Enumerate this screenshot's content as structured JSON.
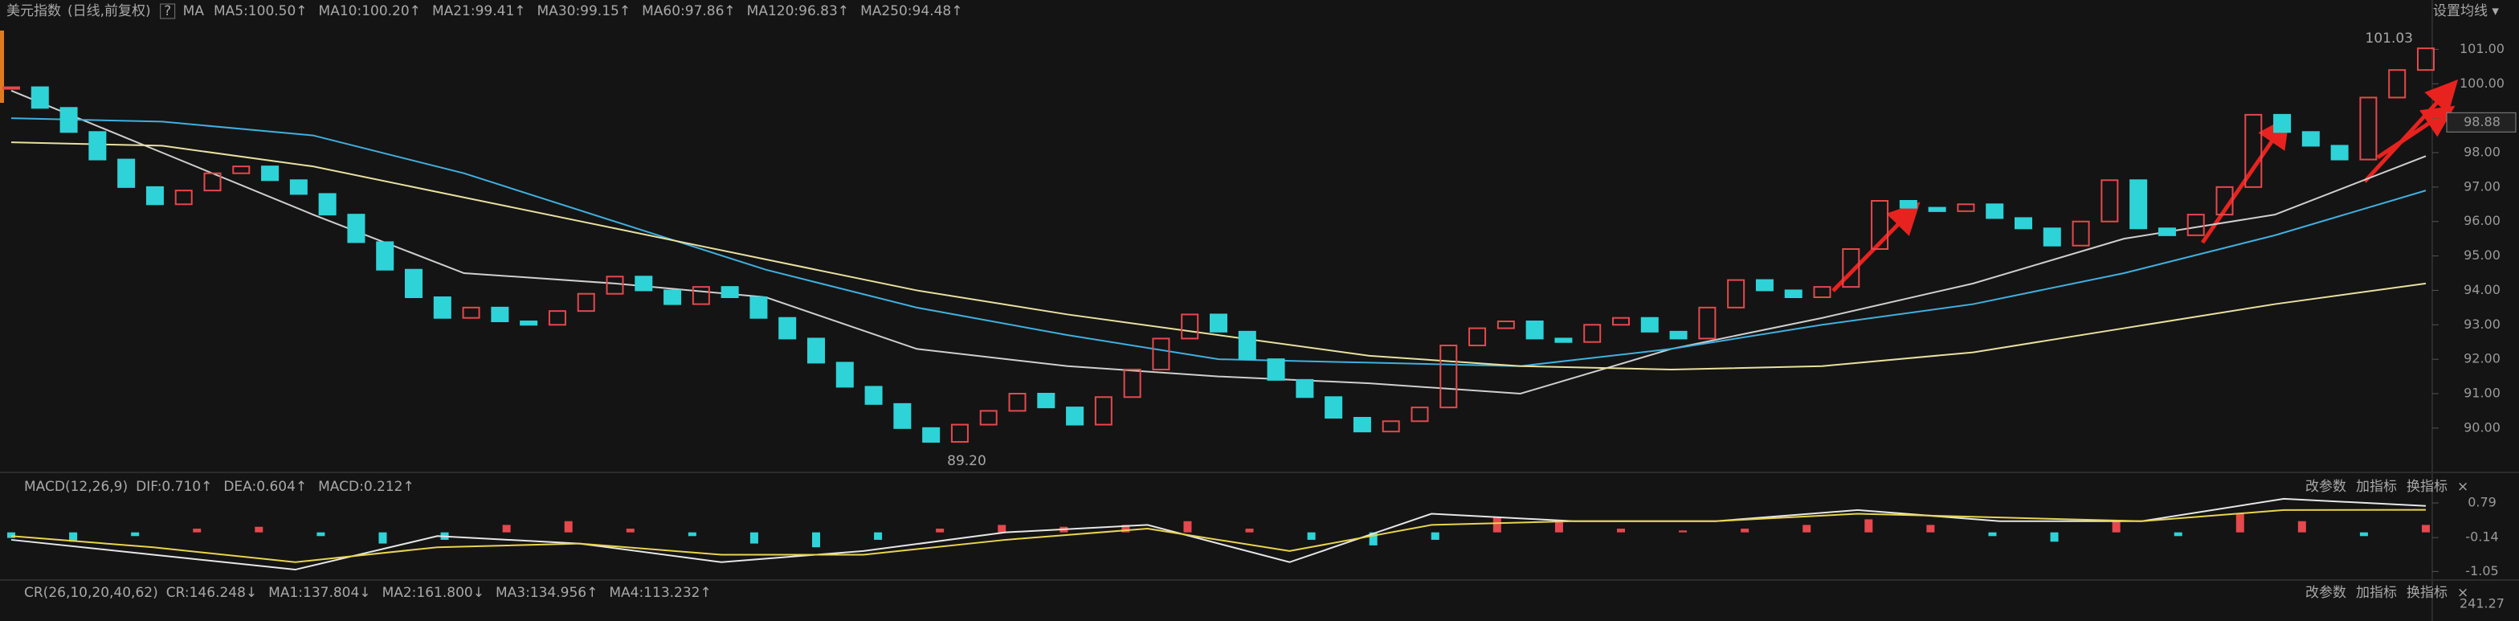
{
  "header": {
    "title": "美元指数",
    "subtitle": "(日线,前复权)",
    "help": "?",
    "ma_label": "MA",
    "settings": "设置均线 ▾"
  },
  "panel_tools": [
    "改参数",
    "加指标",
    "换指标",
    "×"
  ],
  "chart_data": [
    {
      "type": "candlestick",
      "legend": [
        {
          "label": "MA5:100.50↑",
          "color": "#e6e6e6"
        },
        {
          "label": "MA10:100.20↑",
          "color": "#e8d44d"
        },
        {
          "label": "MA21:99.41↑",
          "color": "#d63ad6"
        },
        {
          "label": "MA30:99.15↑",
          "color": "#4cc04c"
        },
        {
          "label": "MA60:97.86↑",
          "color": "#cfcfcf"
        },
        {
          "label": "MA120:96.83↑",
          "color": "#3fb0e0"
        },
        {
          "label": "MA250:94.48↑",
          "color": "#e8e0a0"
        }
      ],
      "closes": [
        99.9,
        99.3,
        98.6,
        97.8,
        97.0,
        96.5,
        96.9,
        97.4,
        97.6,
        97.2,
        96.8,
        96.2,
        95.4,
        94.6,
        93.8,
        93.2,
        93.5,
        93.1,
        93.0,
        93.4,
        93.9,
        94.4,
        94.0,
        93.6,
        94.1,
        93.8,
        93.2,
        92.6,
        91.9,
        91.2,
        90.7,
        90.0,
        89.6,
        90.1,
        90.5,
        91.0,
        90.6,
        90.1,
        90.9,
        91.7,
        92.6,
        93.3,
        92.8,
        92.0,
        91.4,
        90.9,
        90.3,
        89.9,
        90.2,
        90.6,
        92.4,
        92.9,
        93.1,
        92.6,
        92.5,
        93.0,
        93.2,
        92.8,
        92.6,
        93.5,
        94.3,
        94.0,
        93.8,
        94.1,
        95.2,
        96.6,
        96.4,
        96.3,
        96.5,
        96.1,
        95.8,
        95.3,
        96.0,
        97.2,
        95.8,
        95.6,
        96.2,
        97.0,
        99.1,
        98.6,
        98.2,
        97.8,
        99.6,
        100.4,
        101.03
      ],
      "up_color": "#e5484d",
      "down_color": "#2ed3d8",
      "ma_lines": [
        {
          "color": "#cfcfcf",
          "values": [
            99.8,
            98.0,
            96.2,
            94.5,
            94.2,
            93.8,
            92.3,
            91.8,
            91.5,
            91.3,
            91.0,
            92.3,
            93.2,
            94.2,
            95.5,
            96.2,
            97.9
          ]
        },
        {
          "color": "#3fb0e0",
          "values": [
            99.0,
            98.9,
            98.5,
            97.4,
            96.0,
            94.6,
            93.5,
            92.7,
            92.0,
            91.9,
            91.8,
            92.3,
            93.0,
            93.6,
            94.5,
            95.6,
            96.9
          ]
        },
        {
          "color": "#e8e0a0",
          "values": [
            98.3,
            98.2,
            97.6,
            96.7,
            95.8,
            94.9,
            94.0,
            93.3,
            92.7,
            92.1,
            91.8,
            91.7,
            91.8,
            92.2,
            92.9,
            93.6,
            94.2
          ]
        }
      ],
      "ylim": [
        88.9,
        101.5
      ],
      "yticks": [
        {
          "value": 90,
          "label": "90.00"
        },
        {
          "value": 91,
          "label": "91.00"
        },
        {
          "value": 92,
          "label": "92.00"
        },
        {
          "value": 93,
          "label": "93.00"
        },
        {
          "value": 94,
          "label": "94.00"
        },
        {
          "value": 95,
          "label": "95.00"
        },
        {
          "value": 96,
          "label": "96.00"
        },
        {
          "value": 97,
          "label": "97.00"
        },
        {
          "value": 98,
          "label": "98.00"
        },
        {
          "value": 99,
          "label": "99.00"
        },
        {
          "value": 100,
          "label": "100.00"
        },
        {
          "value": 101,
          "label": "101.00"
        }
      ],
      "grid": false,
      "low_label": "89.20",
      "high_label": "101.03",
      "last_price": {
        "value": 98.88,
        "label": "98.88"
      }
    },
    {
      "type": "macd",
      "title": "MACD(12,26,9)",
      "legend": [
        {
          "label": "DIF:0.710↑",
          "color": "#e6e6e6"
        },
        {
          "label": "DEA:0.604↑",
          "color": "#e8d44d"
        },
        {
          "label": "MACD:0.212↑",
          "color": "#d63ad6"
        }
      ],
      "histogram": [
        -0.15,
        -0.25,
        -0.1,
        0.1,
        0.15,
        -0.1,
        -0.3,
        -0.2,
        0.2,
        0.3,
        0.1,
        -0.1,
        -0.3,
        -0.4,
        -0.2,
        0.1,
        0.2,
        0.15,
        0.2,
        0.3,
        0.1,
        -0.2,
        -0.35,
        -0.2,
        0.4,
        0.3,
        0.1,
        0.05,
        0.1,
        0.2,
        0.35,
        0.2,
        -0.1,
        -0.25,
        0.3,
        -0.1,
        0.5,
        0.3,
        -0.1,
        0.2
      ],
      "dif": [
        -0.2,
        -0.6,
        -1.0,
        -0.1,
        -0.3,
        -0.8,
        -0.5,
        0.0,
        0.2,
        -0.8,
        0.5,
        0.3,
        0.3,
        0.6,
        0.3,
        0.3,
        0.9,
        0.71
      ],
      "dea": [
        -0.1,
        -0.4,
        -0.8,
        -0.4,
        -0.3,
        -0.6,
        -0.6,
        -0.2,
        0.1,
        -0.5,
        0.2,
        0.3,
        0.3,
        0.5,
        0.4,
        0.3,
        0.6,
        0.604
      ],
      "dif_color": "#e6e6e6",
      "dea_color": "#e8d44d",
      "up_color": "#e5484d",
      "down_color": "#2ed3d8",
      "ylim": [
        -1.15,
        0.92
      ],
      "yticks": [
        0.79,
        -0.14,
        -1.05
      ]
    }
  ],
  "cr_panel": {
    "title": "CR(26,10,20,40,62)",
    "legend": [
      {
        "label": "CR:146.248↓",
        "color": "#e6e6e6"
      },
      {
        "label": "MA1:137.804↓",
        "color": "#e8d44d"
      },
      {
        "label": "MA2:161.800↓",
        "color": "#d63ad6"
      },
      {
        "label": "MA3:134.956↑",
        "color": "#4cc04c"
      },
      {
        "label": "MA4:113.232↑",
        "color": "#cfcfcf"
      }
    ],
    "axis_label": "241.27"
  }
}
